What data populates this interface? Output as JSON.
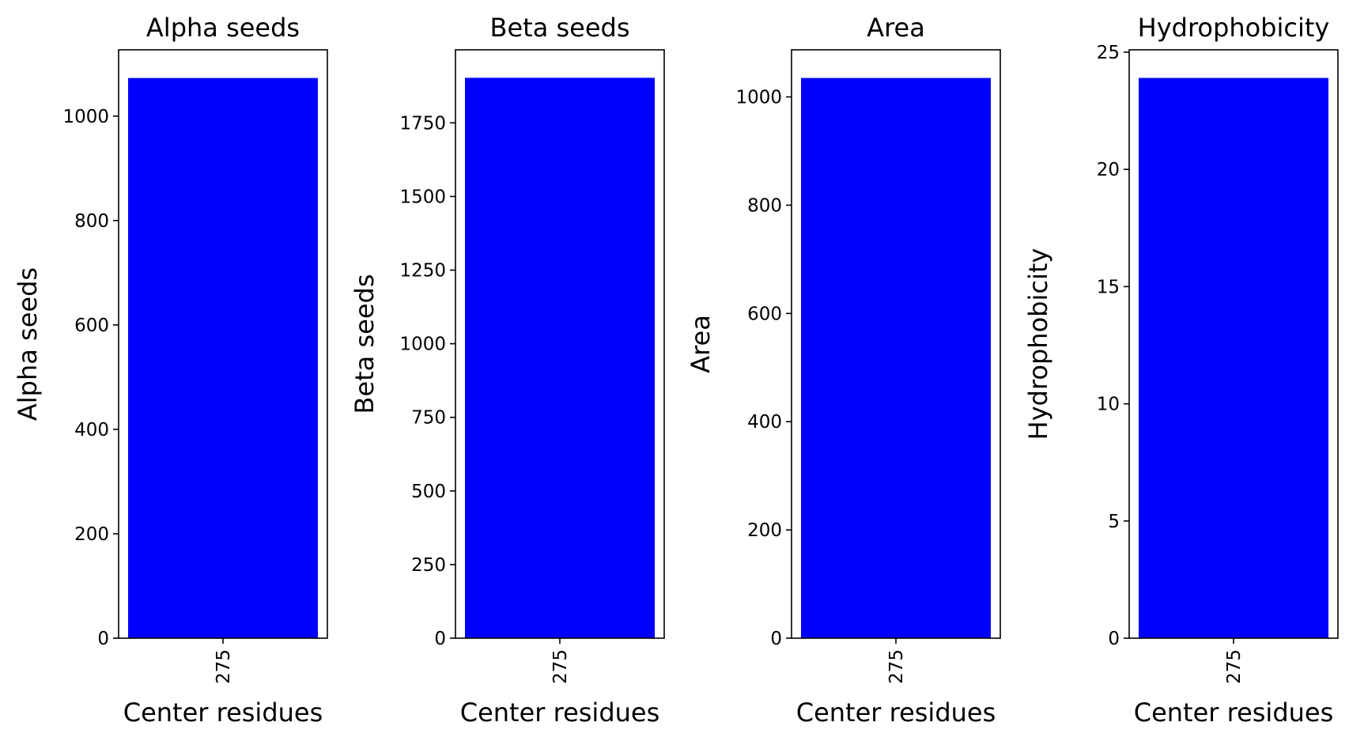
{
  "chart_data": [
    {
      "type": "bar",
      "title": "Alpha seeds",
      "xlabel": "Center residues",
      "ylabel": "Alpha seeds",
      "categories": [
        "275"
      ],
      "values": [
        1073
      ],
      "ylim": [
        0,
        1127
      ],
      "yticks": [
        0,
        200,
        400,
        600,
        800,
        1000
      ],
      "bar_color": "#0000ff",
      "grid": false
    },
    {
      "type": "bar",
      "title": "Beta seeds",
      "xlabel": "Center residues",
      "ylabel": "Beta seeds",
      "categories": [
        "275"
      ],
      "values": [
        1903
      ],
      "ylim": [
        0,
        1998
      ],
      "yticks": [
        0,
        250,
        500,
        750,
        1000,
        1250,
        1500,
        1750
      ],
      "bar_color": "#0000ff",
      "grid": false
    },
    {
      "type": "bar",
      "title": "Area",
      "xlabel": "Center residues",
      "ylabel": "Area",
      "categories": [
        "275"
      ],
      "values": [
        1035
      ],
      "ylim": [
        0,
        1087
      ],
      "yticks": [
        0,
        200,
        400,
        600,
        800,
        1000
      ],
      "bar_color": "#0000ff",
      "grid": false
    },
    {
      "type": "bar",
      "title": "Hydrophobicity",
      "xlabel": "Center residues",
      "ylabel": "Hydrophobicity",
      "categories": [
        "275"
      ],
      "values": [
        23.9
      ],
      "ylim": [
        0,
        25.1
      ],
      "yticks": [
        0,
        5,
        10,
        15,
        20,
        25
      ],
      "bar_color": "#0000ff",
      "grid": false
    }
  ]
}
